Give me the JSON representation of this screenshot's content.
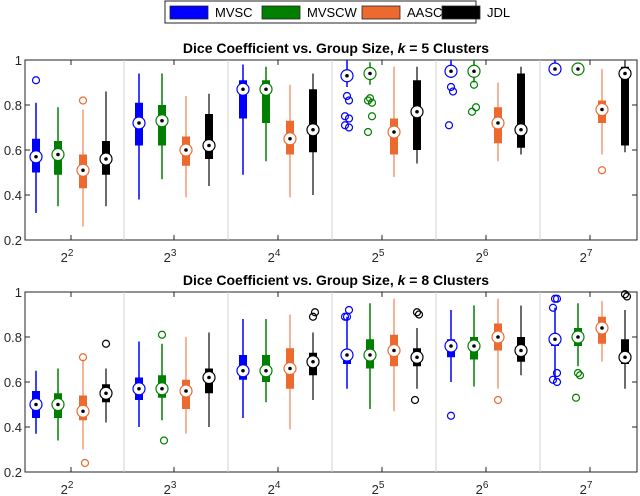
{
  "legend": {
    "items": [
      {
        "label": "MVSC",
        "color": "#0000ff"
      },
      {
        "label": "MVSCW",
        "color": "#007f00"
      },
      {
        "label": "AASC",
        "color": "#ec6a2f"
      },
      {
        "label": "JDL",
        "color": "#000000"
      }
    ]
  },
  "chart_data": [
    {
      "type": "boxplot",
      "title": "Dice Coefficient vs. Group Size, k = 5 Clusters",
      "title_parts": [
        "Dice Coefficient vs. Group Size, ",
        "k",
        " = 5 Clusters"
      ],
      "xlabel": "",
      "ylabel": "",
      "ylim": [
        0.2,
        1.0
      ],
      "yticks": [
        "0.2",
        "0.4",
        "0.6",
        "0.8",
        "1"
      ],
      "categories": [
        "2^2",
        "2^3",
        "2^4",
        "2^5",
        "2^6",
        "2^7"
      ],
      "series": [
        {
          "name": "MVSC",
          "boxes": [
            {
              "min": 0.32,
              "q1": 0.5,
              "median": 0.57,
              "q3": 0.65,
              "max": 0.81,
              "outliers": [
                0.91
              ]
            },
            {
              "min": 0.38,
              "q1": 0.62,
              "median": 0.72,
              "q3": 0.81,
              "max": 0.94,
              "outliers": []
            },
            {
              "min": 0.49,
              "q1": 0.74,
              "median": 0.87,
              "q3": 0.91,
              "max": 0.98,
              "outliers": []
            },
            {
              "min": 0.88,
              "q1": 0.93,
              "median": 0.93,
              "q3": 0.95,
              "max": 1.0,
              "outliers": [
                0.84,
                0.82,
                0.75,
                0.74,
                0.71,
                0.7
              ]
            },
            {
              "min": 0.92,
              "q1": 0.95,
              "median": 0.95,
              "q3": 0.97,
              "max": 1.0,
              "outliers": [
                0.88,
                0.86,
                0.71
              ]
            },
            {
              "min": 0.93,
              "q1": 0.96,
              "median": 0.96,
              "q3": 0.97,
              "max": 1.0,
              "outliers": []
            }
          ]
        },
        {
          "name": "MVSCW",
          "boxes": [
            {
              "min": 0.35,
              "q1": 0.49,
              "median": 0.58,
              "q3": 0.64,
              "max": 0.79,
              "outliers": []
            },
            {
              "min": 0.47,
              "q1": 0.62,
              "median": 0.73,
              "q3": 0.8,
              "max": 0.94,
              "outliers": []
            },
            {
              "min": 0.55,
              "q1": 0.72,
              "median": 0.87,
              "q3": 0.91,
              "max": 0.97,
              "outliers": []
            },
            {
              "min": 0.89,
              "q1": 0.92,
              "median": 0.94,
              "q3": 0.94,
              "max": 0.99,
              "outliers": [
                0.83,
                0.81,
                0.82,
                0.75,
                0.68
              ]
            },
            {
              "min": 0.9,
              "q1": 0.95,
              "median": 0.95,
              "q3": 0.97,
              "max": 1.0,
              "outliers": [
                0.89,
                0.79,
                0.77
              ]
            },
            {
              "min": 0.93,
              "q1": 0.96,
              "median": 0.96,
              "q3": 0.97,
              "max": 0.98,
              "outliers": []
            }
          ]
        },
        {
          "name": "AASC",
          "boxes": [
            {
              "min": 0.26,
              "q1": 0.43,
              "median": 0.51,
              "q3": 0.58,
              "max": 0.78,
              "outliers": [
                0.82
              ]
            },
            {
              "min": 0.39,
              "q1": 0.53,
              "median": 0.6,
              "q3": 0.66,
              "max": 0.84,
              "outliers": []
            },
            {
              "min": 0.39,
              "q1": 0.58,
              "median": 0.65,
              "q3": 0.73,
              "max": 0.89,
              "outliers": []
            },
            {
              "min": 0.48,
              "q1": 0.58,
              "median": 0.68,
              "q3": 0.74,
              "max": 0.97,
              "outliers": []
            },
            {
              "min": 0.55,
              "q1": 0.63,
              "median": 0.72,
              "q3": 0.79,
              "max": 0.9,
              "outliers": []
            },
            {
              "min": 0.58,
              "q1": 0.72,
              "median": 0.78,
              "q3": 0.82,
              "max": 0.96,
              "outliers": [
                0.51
              ]
            }
          ]
        },
        {
          "name": "JDL",
          "boxes": [
            {
              "min": 0.35,
              "q1": 0.49,
              "median": 0.56,
              "q3": 0.64,
              "max": 0.86,
              "outliers": []
            },
            {
              "min": 0.44,
              "q1": 0.56,
              "median": 0.62,
              "q3": 0.76,
              "max": 0.85,
              "outliers": []
            },
            {
              "min": 0.4,
              "q1": 0.59,
              "median": 0.69,
              "q3": 0.87,
              "max": 0.94,
              "outliers": []
            },
            {
              "min": 0.54,
              "q1": 0.6,
              "median": 0.77,
              "q3": 0.91,
              "max": 0.97,
              "outliers": []
            },
            {
              "min": 0.58,
              "q1": 0.61,
              "median": 0.69,
              "q3": 0.94,
              "max": 0.97,
              "outliers": []
            },
            {
              "min": 0.59,
              "q1": 0.62,
              "median": 0.94,
              "q3": 0.97,
              "max": 1.0,
              "outliers": []
            }
          ]
        }
      ]
    },
    {
      "type": "boxplot",
      "title": "Dice Coefficient vs. Group Size, k = 8 Clusters",
      "title_parts": [
        "Dice Coefficient vs. Group Size, ",
        "k",
        " = 8 Clusters"
      ],
      "xlabel": "",
      "ylabel": "",
      "ylim": [
        0.2,
        1.0
      ],
      "yticks": [
        "0.2",
        "0.4",
        "0.6",
        "0.8",
        "1"
      ],
      "categories": [
        "2^2",
        "2^3",
        "2^4",
        "2^5",
        "2^6",
        "2^7"
      ],
      "series": [
        {
          "name": "MVSC",
          "boxes": [
            {
              "min": 0.37,
              "q1": 0.44,
              "median": 0.5,
              "q3": 0.56,
              "max": 0.65,
              "outliers": []
            },
            {
              "min": 0.4,
              "q1": 0.52,
              "median": 0.57,
              "q3": 0.62,
              "max": 0.78,
              "outliers": []
            },
            {
              "min": 0.44,
              "q1": 0.61,
              "median": 0.65,
              "q3": 0.72,
              "max": 0.88,
              "outliers": []
            },
            {
              "min": 0.57,
              "q1": 0.68,
              "median": 0.72,
              "q3": 0.74,
              "max": 0.89,
              "outliers": [
                0.89,
                0.92,
                0.89
              ]
            },
            {
              "min": 0.6,
              "q1": 0.71,
              "median": 0.76,
              "q3": 0.79,
              "max": 0.92,
              "outliers": [
                0.45
              ]
            },
            {
              "min": 0.61,
              "q1": 0.76,
              "median": 0.79,
              "q3": 0.81,
              "max": 0.93,
              "outliers": [
                0.97,
                0.97,
                0.93,
                0.64,
                0.61,
                0.6
              ]
            }
          ]
        },
        {
          "name": "MVSCW",
          "boxes": [
            {
              "min": 0.34,
              "q1": 0.44,
              "median": 0.5,
              "q3": 0.55,
              "max": 0.66,
              "outliers": []
            },
            {
              "min": 0.43,
              "q1": 0.53,
              "median": 0.57,
              "q3": 0.63,
              "max": 0.77,
              "outliers": [
                0.81,
                0.34
              ]
            },
            {
              "min": 0.51,
              "q1": 0.6,
              "median": 0.65,
              "q3": 0.72,
              "max": 0.88,
              "outliers": []
            },
            {
              "min": 0.48,
              "q1": 0.66,
              "median": 0.72,
              "q3": 0.79,
              "max": 0.95,
              "outliers": []
            },
            {
              "min": 0.58,
              "q1": 0.7,
              "median": 0.76,
              "q3": 0.8,
              "max": 0.94,
              "outliers": []
            },
            {
              "min": 0.67,
              "q1": 0.76,
              "median": 0.8,
              "q3": 0.84,
              "max": 0.95,
              "outliers": [
                0.64,
                0.63,
                0.53
              ]
            }
          ]
        },
        {
          "name": "AASC",
          "boxes": [
            {
              "min": 0.3,
              "q1": 0.43,
              "median": 0.47,
              "q3": 0.54,
              "max": 0.7,
              "outliers": [
                0.71,
                0.24
              ]
            },
            {
              "min": 0.37,
              "q1": 0.48,
              "median": 0.56,
              "q3": 0.61,
              "max": 0.8,
              "outliers": []
            },
            {
              "min": 0.39,
              "q1": 0.57,
              "median": 0.66,
              "q3": 0.75,
              "max": 0.9,
              "outliers": []
            },
            {
              "min": 0.47,
              "q1": 0.67,
              "median": 0.74,
              "q3": 0.81,
              "max": 0.97,
              "outliers": []
            },
            {
              "min": 0.57,
              "q1": 0.74,
              "median": 0.8,
              "q3": 0.86,
              "max": 0.97,
              "outliers": [
                0.52
              ]
            },
            {
              "min": 0.69,
              "q1": 0.77,
              "median": 0.84,
              "q3": 0.89,
              "max": 0.96,
              "outliers": []
            }
          ]
        },
        {
          "name": "JDL",
          "boxes": [
            {
              "min": 0.42,
              "q1": 0.51,
              "median": 0.55,
              "q3": 0.59,
              "max": 0.66,
              "outliers": [
                0.77
              ]
            },
            {
              "min": 0.4,
              "q1": 0.55,
              "median": 0.62,
              "q3": 0.66,
              "max": 0.82,
              "outliers": []
            },
            {
              "min": 0.52,
              "q1": 0.63,
              "median": 0.69,
              "q3": 0.73,
              "max": 0.82,
              "outliers": [
                0.89,
                0.91
              ]
            },
            {
              "min": 0.57,
              "q1": 0.67,
              "median": 0.71,
              "q3": 0.75,
              "max": 0.84,
              "outliers": [
                0.91,
                0.9,
                0.52
              ]
            },
            {
              "min": 0.63,
              "q1": 0.69,
              "median": 0.74,
              "q3": 0.8,
              "max": 0.94,
              "outliers": []
            },
            {
              "min": 0.57,
              "q1": 0.68,
              "median": 0.71,
              "q3": 0.79,
              "max": 0.92,
              "outliers": [
                0.99,
                0.98
              ]
            }
          ]
        }
      ]
    }
  ]
}
